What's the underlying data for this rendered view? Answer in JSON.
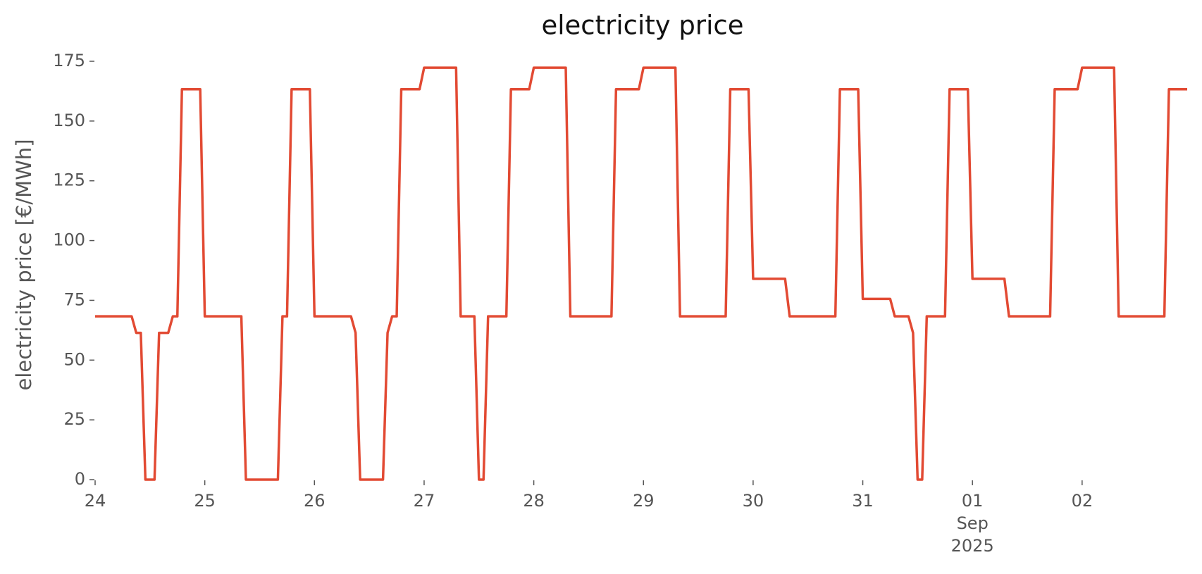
{
  "chart_data": {
    "type": "line",
    "title": "electricity price",
    "y_label": "electricity price [€/MWh]",
    "x_offset_label": [
      "Sep",
      "2025"
    ],
    "xlim": [
      "2025-08-24 00:00",
      "2025-09-02 23:00"
    ],
    "xticks": [
      {
        "value": "2025-08-24 00:00",
        "label": "24"
      },
      {
        "value": "2025-08-25 00:00",
        "label": "25"
      },
      {
        "value": "2025-08-26 00:00",
        "label": "26"
      },
      {
        "value": "2025-08-27 00:00",
        "label": "27"
      },
      {
        "value": "2025-08-28 00:00",
        "label": "28"
      },
      {
        "value": "2025-08-29 00:00",
        "label": "29"
      },
      {
        "value": "2025-08-30 00:00",
        "label": "30"
      },
      {
        "value": "2025-08-31 00:00",
        "label": "31"
      },
      {
        "value": "2025-09-01 00:00",
        "label": "01"
      },
      {
        "value": "2025-09-02 00:00",
        "label": "02"
      }
    ],
    "ylim": [
      0,
      175
    ],
    "yticks": [
      0,
      25,
      50,
      75,
      100,
      125,
      150,
      175
    ],
    "grid": false,
    "series": [
      {
        "name": "electricity price",
        "color": "#e24a33",
        "x": [
          "2025-08-24 00:00",
          "2025-08-24 08:00",
          "2025-08-24 09:00",
          "2025-08-24 10:00",
          "2025-08-24 11:00",
          "2025-08-24 13:00",
          "2025-08-24 14:00",
          "2025-08-24 16:00",
          "2025-08-24 17:00",
          "2025-08-24 18:00",
          "2025-08-24 19:00",
          "2025-08-24 23:00",
          "2025-08-25 00:00",
          "2025-08-25 08:00",
          "2025-08-25 09:00",
          "2025-08-25 16:00",
          "2025-08-25 17:00",
          "2025-08-25 18:00",
          "2025-08-25 19:00",
          "2025-08-25 23:00",
          "2025-08-26 00:00",
          "2025-08-26 08:00",
          "2025-08-26 09:00",
          "2025-08-26 10:00",
          "2025-08-26 15:00",
          "2025-08-26 16:00",
          "2025-08-26 17:00",
          "2025-08-26 18:00",
          "2025-08-26 19:00",
          "2025-08-26 23:00",
          "2025-08-27 00:00",
          "2025-08-27 07:00",
          "2025-08-27 08:00",
          "2025-08-27 11:00",
          "2025-08-27 12:00",
          "2025-08-27 13:00",
          "2025-08-27 14:00",
          "2025-08-27 18:00",
          "2025-08-27 19:00",
          "2025-08-27 23:00",
          "2025-08-28 00:00",
          "2025-08-28 07:00",
          "2025-08-28 08:00",
          "2025-08-28 17:00",
          "2025-08-28 18:00",
          "2025-08-28 23:00",
          "2025-08-29 00:00",
          "2025-08-29 07:00",
          "2025-08-29 08:00",
          "2025-08-29 18:00",
          "2025-08-29 19:00",
          "2025-08-29 23:00",
          "2025-08-30 00:00",
          "2025-08-30 07:00",
          "2025-08-30 08:00",
          "2025-08-30 18:00",
          "2025-08-30 19:00",
          "2025-08-30 23:00",
          "2025-08-31 00:00",
          "2025-08-31 06:00",
          "2025-08-31 07:00",
          "2025-08-31 10:00",
          "2025-08-31 11:00",
          "2025-08-31 12:00",
          "2025-08-31 13:00",
          "2025-08-31 14:00",
          "2025-08-31 18:00",
          "2025-08-31 19:00",
          "2025-08-31 23:00",
          "2025-09-01 00:00",
          "2025-09-01 07:00",
          "2025-09-01 08:00",
          "2025-09-01 17:00",
          "2025-09-01 18:00",
          "2025-09-01 23:00",
          "2025-09-02 00:00",
          "2025-09-02 07:00",
          "2025-09-02 08:00",
          "2025-09-02 18:00",
          "2025-09-02 19:00",
          "2025-09-02 23:00"
        ],
        "values": [
          68.3,
          68.3,
          61.4,
          61.4,
          0,
          0,
          61.4,
          61.4,
          68.3,
          68.3,
          163.3,
          163.3,
          68.3,
          68.3,
          0,
          0,
          68.3,
          68.3,
          163.3,
          163.3,
          68.3,
          68.3,
          61.4,
          0,
          0,
          61.4,
          68.3,
          68.3,
          163.3,
          163.3,
          172.3,
          172.3,
          68.3,
          68.3,
          0,
          0,
          68.3,
          68.3,
          163.3,
          163.3,
          172.3,
          172.3,
          68.3,
          68.3,
          163.3,
          163.3,
          172.3,
          172.3,
          68.3,
          68.3,
          163.3,
          163.3,
          84,
          84,
          68.3,
          68.3,
          163.3,
          163.3,
          75.6,
          75.6,
          68.3,
          68.3,
          61.4,
          0,
          0,
          68.3,
          68.3,
          163.3,
          163.3,
          84,
          84,
          68.3,
          68.3,
          163.3,
          163.3,
          172.3,
          172.3,
          68.3,
          68.3,
          163.3,
          163.3
        ]
      }
    ]
  }
}
